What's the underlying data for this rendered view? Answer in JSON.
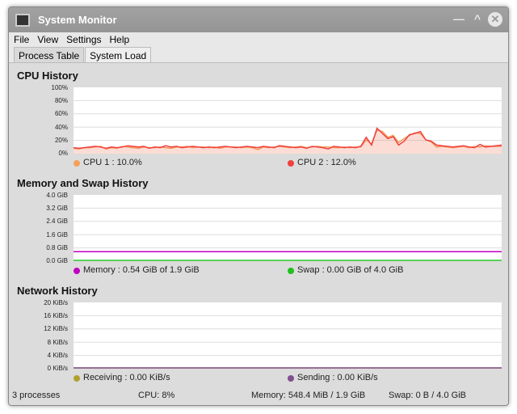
{
  "window": {
    "title": "System Monitor"
  },
  "menu": [
    "File",
    "View",
    "Settings",
    "Help"
  ],
  "tabs": [
    {
      "label": "Process Table",
      "active": false
    },
    {
      "label": "System Load",
      "active": true
    }
  ],
  "chart_data": [
    {
      "type": "area",
      "title": "CPU History",
      "yticks": [
        "100%",
        "80%",
        "60%",
        "40%",
        "20%",
        "0%"
      ],
      "ylim": [
        0,
        100
      ],
      "grid": true,
      "series": [
        {
          "name": "CPU 1",
          "legend": "CPU 1 : 10.0%",
          "color": "#f5a05a",
          "values": [
            7,
            6,
            8,
            8,
            9,
            10,
            6,
            8,
            7,
            10,
            9,
            8,
            7,
            9,
            8,
            8,
            9,
            8,
            7,
            9,
            9,
            10,
            8,
            9,
            9,
            8,
            9,
            7,
            9,
            9,
            9,
            8,
            9,
            8,
            5,
            9,
            8,
            9,
            10,
            9,
            8,
            9,
            10,
            8,
            9,
            10,
            9,
            9,
            8,
            8,
            9,
            8,
            9,
            9,
            20,
            14,
            35,
            33,
            24,
            27,
            16,
            22,
            27,
            31,
            30,
            20,
            17,
            9,
            10,
            9,
            8,
            9,
            10,
            8,
            10,
            9,
            11,
            10,
            10,
            10
          ]
        },
        {
          "name": "CPU 2",
          "legend": "CPU 2 : 12.0%",
          "color": "#f04040",
          "values": [
            8,
            7,
            8,
            9,
            10,
            9,
            7,
            9,
            8,
            9,
            11,
            10,
            9,
            10,
            7,
            9,
            8,
            11,
            9,
            10,
            8,
            9,
            10,
            9,
            8,
            9,
            8,
            9,
            10,
            9,
            8,
            9,
            10,
            9,
            8,
            10,
            9,
            8,
            11,
            10,
            9,
            8,
            9,
            7,
            10,
            9,
            8,
            6,
            10,
            9,
            8,
            9,
            8,
            10,
            24,
            12,
            38,
            30,
            22,
            25,
            12,
            18,
            28,
            30,
            33,
            20,
            18,
            12,
            11,
            10,
            9,
            10,
            11,
            9,
            8,
            13,
            9,
            10,
            11,
            12
          ]
        }
      ]
    },
    {
      "type": "line",
      "title": "Memory and Swap History",
      "yticks": [
        "4.0 GiB",
        "3.2 GiB",
        "2.4 GiB",
        "1.6 GiB",
        "0.8 GiB",
        "0.0 GiB"
      ],
      "ylim": [
        0,
        4
      ],
      "grid": true,
      "series": [
        {
          "name": "Memory",
          "legend": "Memory : 0.54 GiB of 1.9 GiB",
          "color": "#c000c0",
          "values": [
            0.54,
            0.54
          ]
        },
        {
          "name": "Swap",
          "legend": "Swap : 0.00 GiB of 4.0 GiB",
          "color": "#20c020",
          "values": [
            0,
            0
          ]
        }
      ]
    },
    {
      "type": "line",
      "title": "Network History",
      "yticks": [
        "20 KiB/s",
        "16 KiB/s",
        "12 KiB/s",
        "8 KiB/s",
        "4 KiB/s",
        "0 KiB/s"
      ],
      "ylim": [
        0,
        20
      ],
      "grid": true,
      "series": [
        {
          "name": "Receiving",
          "legend": "Receiving : 0.00 KiB/s",
          "color": "#b0a030",
          "values": [
            0,
            0
          ]
        },
        {
          "name": "Sending",
          "legend": "Sending : 0.00 KiB/s",
          "color": "#805090",
          "values": [
            0,
            0
          ]
        }
      ]
    }
  ],
  "status": {
    "processes": "3 processes",
    "cpu": "CPU: 8%",
    "memory": "Memory: 548.4 MiB / 1.9 GiB",
    "swap": "Swap: 0 B / 4.0 GiB"
  }
}
